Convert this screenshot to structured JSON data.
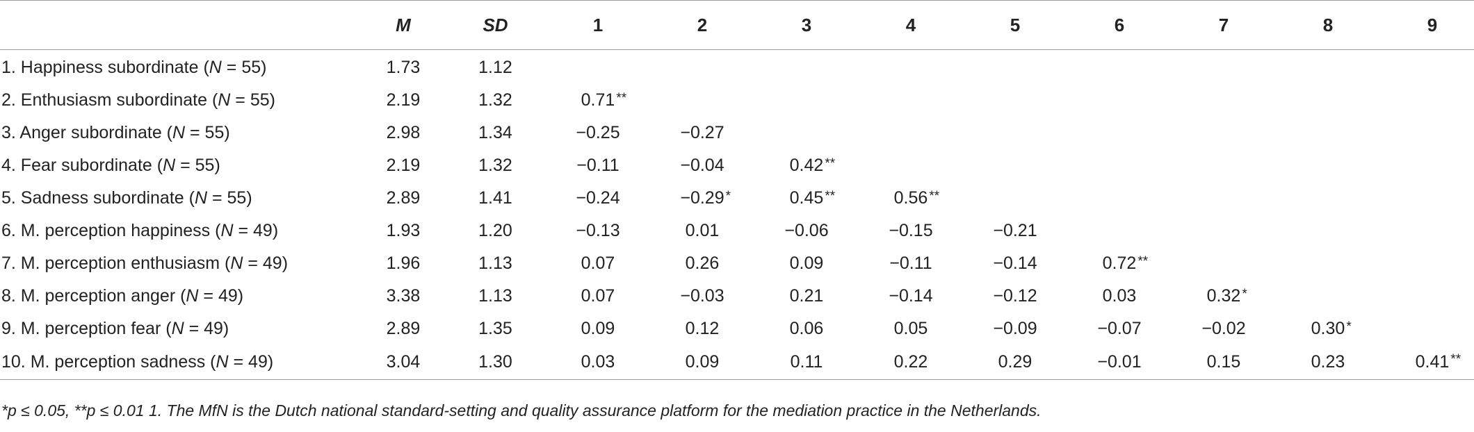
{
  "table": {
    "headers": [
      "",
      "M",
      "SD",
      "1",
      "2",
      "3",
      "4",
      "5",
      "6",
      "7",
      "8",
      "9"
    ],
    "rows": [
      {
        "label_pre": "1. Happiness subordinate (",
        "n_var": "N",
        "label_post": " = 55)",
        "M": "1.73",
        "SD": "1.12",
        "cells": [
          null,
          null,
          null,
          null,
          null,
          null,
          null,
          null,
          null
        ]
      },
      {
        "label_pre": "2. Enthusiasm subordinate (",
        "n_var": "N",
        "label_post": " = 55)",
        "M": "2.19",
        "SD": "1.32",
        "cells": [
          {
            "v": "0.71",
            "s": "**"
          },
          null,
          null,
          null,
          null,
          null,
          null,
          null,
          null
        ]
      },
      {
        "label_pre": "3. Anger subordinate (",
        "n_var": "N",
        "label_post": " = 55)",
        "M": "2.98",
        "SD": "1.34",
        "cells": [
          {
            "v": "−0.25",
            "s": ""
          },
          {
            "v": "−0.27",
            "s": ""
          },
          null,
          null,
          null,
          null,
          null,
          null,
          null
        ]
      },
      {
        "label_pre": "4. Fear subordinate (",
        "n_var": "N",
        "label_post": " = 55)",
        "M": "2.19",
        "SD": "1.32",
        "cells": [
          {
            "v": "−0.11",
            "s": ""
          },
          {
            "v": "−0.04",
            "s": ""
          },
          {
            "v": "0.42",
            "s": "**"
          },
          null,
          null,
          null,
          null,
          null,
          null
        ]
      },
      {
        "label_pre": "5. Sadness subordinate (",
        "n_var": "N",
        "label_post": " = 55)",
        "M": "2.89",
        "SD": "1.41",
        "cells": [
          {
            "v": "−0.24",
            "s": ""
          },
          {
            "v": "−0.29",
            "s": "*"
          },
          {
            "v": "0.45",
            "s": "**"
          },
          {
            "v": "0.56",
            "s": "**"
          },
          null,
          null,
          null,
          null,
          null
        ]
      },
      {
        "label_pre": "6. M. perception happiness (",
        "n_var": "N",
        "label_post": " = 49)",
        "M": "1.93",
        "SD": "1.20",
        "cells": [
          {
            "v": "−0.13",
            "s": ""
          },
          {
            "v": "0.01",
            "s": ""
          },
          {
            "v": "−0.06",
            "s": ""
          },
          {
            "v": "−0.15",
            "s": ""
          },
          {
            "v": "−0.21",
            "s": ""
          },
          null,
          null,
          null,
          null
        ]
      },
      {
        "label_pre": "7. M. perception enthusiasm (",
        "n_var": "N",
        "label_post": " = 49)",
        "M": "1.96",
        "SD": "1.13",
        "cells": [
          {
            "v": "0.07",
            "s": ""
          },
          {
            "v": "0.26",
            "s": ""
          },
          {
            "v": "0.09",
            "s": ""
          },
          {
            "v": "−0.11",
            "s": ""
          },
          {
            "v": "−0.14",
            "s": ""
          },
          {
            "v": "0.72",
            "s": "**"
          },
          null,
          null,
          null
        ]
      },
      {
        "label_pre": "8. M. perception anger (",
        "n_var": "N",
        "label_post": " = 49)",
        "M": "3.38",
        "SD": "1.13",
        "cells": [
          {
            "v": "0.07",
            "s": ""
          },
          {
            "v": "−0.03",
            "s": ""
          },
          {
            "v": "0.21",
            "s": ""
          },
          {
            "v": "−0.14",
            "s": ""
          },
          {
            "v": "−0.12",
            "s": ""
          },
          {
            "v": "0.03",
            "s": ""
          },
          {
            "v": "0.32",
            "s": "*"
          },
          null,
          null
        ]
      },
      {
        "label_pre": "9. M. perception fear (",
        "n_var": "N",
        "label_post": " = 49)",
        "M": "2.89",
        "SD": "1.35",
        "cells": [
          {
            "v": "0.09",
            "s": ""
          },
          {
            "v": "0.12",
            "s": ""
          },
          {
            "v": "0.06",
            "s": ""
          },
          {
            "v": "0.05",
            "s": ""
          },
          {
            "v": "−0.09",
            "s": ""
          },
          {
            "v": "−0.07",
            "s": ""
          },
          {
            "v": "−0.02",
            "s": ""
          },
          {
            "v": "0.30",
            "s": "*"
          },
          null
        ]
      },
      {
        "label_pre": "10. M. perception sadness (",
        "n_var": "N",
        "label_post": " = 49)",
        "M": "3.04",
        "SD": "1.30",
        "cells": [
          {
            "v": "0.03",
            "s": ""
          },
          {
            "v": "0.09",
            "s": ""
          },
          {
            "v": "0.11",
            "s": ""
          },
          {
            "v": "0.22",
            "s": ""
          },
          {
            "v": "0.29",
            "s": ""
          },
          {
            "v": "−0.01",
            "s": ""
          },
          {
            "v": "0.15",
            "s": ""
          },
          {
            "v": "0.23",
            "s": ""
          },
          {
            "v": "0.41",
            "s": "**"
          }
        ]
      }
    ]
  },
  "footnote": "*p ≤ 0.05, **p ≤ 0.01 1. The MfN is the Dutch national standard-setting and quality assurance platform for the mediation practice in the Netherlands."
}
